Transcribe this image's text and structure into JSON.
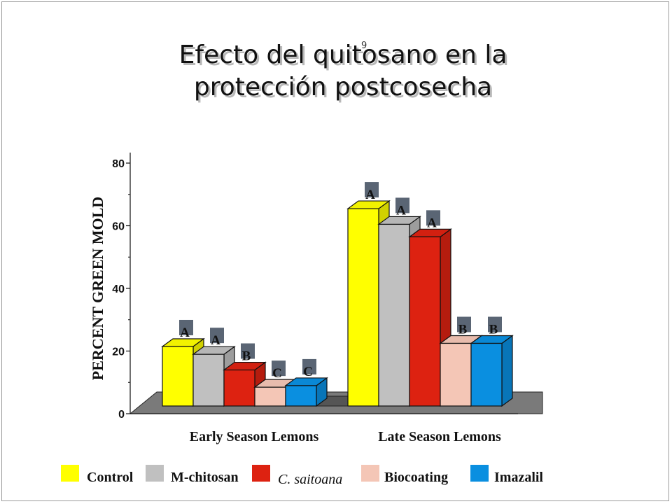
{
  "slide": {
    "title_line1": "Efecto del quitosano en la",
    "title_line2": "protección postcosecha",
    "small_mark": "9"
  },
  "chart_data": {
    "type": "bar",
    "ylabel": "PERCENT GREEN MOLD",
    "xlabel": "",
    "ylim": [
      0,
      80
    ],
    "yticks": [
      "0",
      "20",
      "40",
      "60",
      "80"
    ],
    "categories": [
      "Early Season Lemons",
      "Late Season Lemons"
    ],
    "series": [
      {
        "name": "Control",
        "color": "#ffff00",
        "values": [
          19,
          63
        ],
        "letters": [
          "A",
          "A"
        ]
      },
      {
        "name": "M-chitosan",
        "color": "#c0c0c0",
        "values": [
          16.5,
          58
        ],
        "letters": [
          "A",
          "A"
        ]
      },
      {
        "name": "C. saitoana",
        "color": "#dd2211",
        "values": [
          11.5,
          54
        ],
        "letters": [
          "B",
          "A"
        ]
      },
      {
        "name": "Biocoating",
        "color": "#f4c6b6",
        "values": [
          6,
          20
        ],
        "letters": [
          "C",
          "B"
        ]
      },
      {
        "name": "Imazalil",
        "color": "#0a8fe0",
        "values": [
          6.5,
          20
        ],
        "letters": [
          "C",
          "B"
        ]
      }
    ],
    "floor_color": "#7a7a7a",
    "legend_position": "bottom"
  }
}
